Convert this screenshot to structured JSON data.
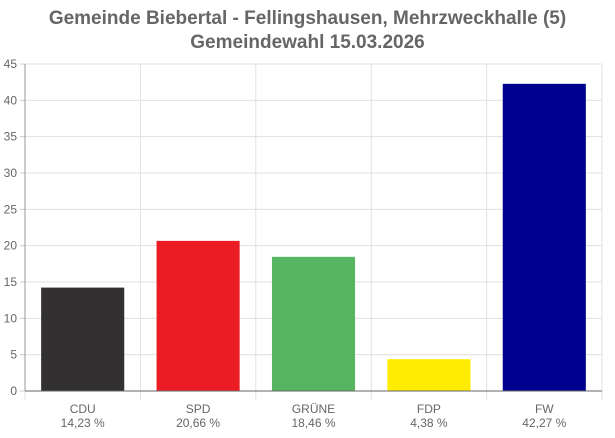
{
  "chart_data": {
    "type": "bar",
    "title": "Gemeinde Biebertal - Fellingshausen, Mehrzweckhalle (5)",
    "subtitle": "Gemeindewahl 15.03.2026",
    "categories": [
      "CDU",
      "SPD",
      "GRÜNE",
      "FDP",
      "FW"
    ],
    "values": [
      14.23,
      20.66,
      18.46,
      4.38,
      42.27
    ],
    "value_labels": [
      "14,23 %",
      "20,66 %",
      "18,46 %",
      "4,38 %",
      "42,27 %"
    ],
    "colors": [
      "#323031",
      "#ec1c24",
      "#56b560",
      "#ffec00",
      "#000090"
    ],
    "ylim": [
      0,
      45
    ],
    "yticks": [
      "0",
      "5",
      "10",
      "15",
      "20",
      "25",
      "30",
      "35",
      "40",
      "45"
    ],
    "xlabel": "",
    "ylabel": "",
    "grid": true,
    "legend": "none"
  }
}
